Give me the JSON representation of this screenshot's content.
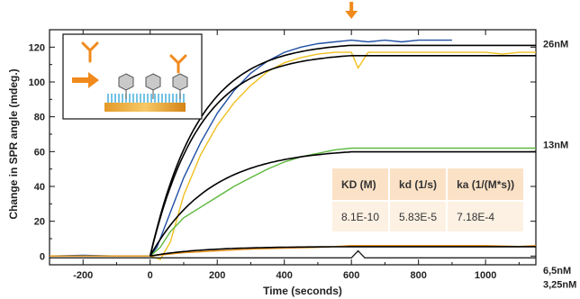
{
  "chart_data": {
    "type": "line",
    "title": "",
    "xlabel": "Time (seconds)",
    "ylabel": "Change in SPR angle (mdeg.)",
    "xlim": [
      -300,
      1150
    ],
    "ylim": [
      -5,
      130
    ],
    "x_ticks": [
      -200,
      0,
      200,
      400,
      600,
      800,
      1000
    ],
    "y_ticks": [
      0,
      20,
      40,
      60,
      80,
      100,
      120
    ],
    "grid": false,
    "injection_marker_time": 600,
    "concentration_labels": [
      {
        "text": "26nM",
        "value": 122
      },
      {
        "text": "13nM",
        "value": 64
      },
      {
        "text": "6,5nM",
        "value": -8
      },
      {
        "text": "3,25nM",
        "value": -16
      }
    ],
    "series": [
      {
        "color": "#1f4fa3",
        "x": [
          -300,
          -200,
          -100,
          0,
          20,
          50,
          100,
          150,
          200,
          250,
          300,
          350,
          400,
          450,
          500,
          550,
          600,
          650,
          700,
          750,
          800,
          850,
          900
        ],
        "y": [
          0,
          0.5,
          0,
          0,
          5,
          20,
          45,
          65,
          82,
          95,
          105,
          112,
          117,
          120,
          122,
          123,
          124,
          123,
          124,
          123,
          124,
          124,
          124
        ]
      },
      {
        "color": "#f0c020",
        "x": [
          -300,
          -200,
          -100,
          0,
          30,
          60,
          100,
          150,
          200,
          250,
          300,
          350,
          400,
          450,
          500,
          550,
          600,
          620,
          650,
          700,
          750,
          800,
          850,
          900,
          950,
          1000,
          1050,
          1100,
          1150
        ],
        "y": [
          0,
          0,
          0,
          0,
          -2,
          8,
          35,
          58,
          75,
          88,
          98,
          106,
          111,
          114,
          116,
          117,
          117,
          108,
          117,
          117,
          117,
          117,
          117,
          117,
          117,
          117,
          116,
          117,
          117
        ]
      },
      {
        "color": "#5cb83c",
        "x": [
          -300,
          -200,
          -100,
          0,
          30,
          60,
          100,
          150,
          200,
          250,
          300,
          350,
          400,
          450,
          500,
          550,
          600,
          700,
          800,
          900,
          1000,
          1100,
          1150
        ],
        "y": [
          0,
          0,
          0,
          0,
          5,
          14,
          22,
          28,
          34,
          40,
          45,
          50,
          54,
          57,
          59,
          61,
          62,
          62,
          62,
          62,
          62,
          62,
          62
        ]
      },
      {
        "color": "#e8901a",
        "x": [
          -300,
          -200,
          -100,
          0,
          100,
          200,
          300,
          400,
          500,
          600,
          700,
          800,
          900,
          1000,
          1100,
          1150
        ],
        "y": [
          0,
          0,
          0,
          0,
          2,
          3,
          4,
          4.5,
          5,
          6,
          6,
          6,
          6,
          6,
          5.5,
          6
        ]
      },
      {
        "color": "#222222",
        "x": [
          -300,
          -200,
          -100,
          0,
          100,
          200,
          300,
          400,
          500,
          600,
          620,
          640,
          700,
          800,
          900,
          1000,
          1100,
          1150
        ],
        "y": [
          -1,
          -1,
          -1,
          -1,
          -1,
          -1,
          -1,
          -1,
          -1,
          -1,
          3,
          -1,
          -1,
          -1,
          -1,
          -1,
          -1,
          -1
        ]
      }
    ],
    "fits": [
      {
        "color": "#000000",
        "ka": 0.0043,
        "plateau": 123,
        "end": 600
      },
      {
        "color": "#000000",
        "ka": 0.0043,
        "plateau": 117,
        "end": 600
      },
      {
        "color": "#000000",
        "ka": 0.0035,
        "plateau": 62,
        "end": 600
      },
      {
        "color": "#000000",
        "ka": 0.004,
        "plateau": 5.5,
        "end": 600
      }
    ]
  },
  "table": {
    "headers": [
      "KD (M)",
      "kd (1/s)",
      "ka (1/(M*s))"
    ],
    "values": [
      "8.1E-10",
      "5.83E-5",
      "7.18E-4"
    ]
  },
  "colors": {
    "accent": "#f08a1c",
    "table_header_bg": "#fbe2c6",
    "table_cell_bg": "#fdf1e3"
  },
  "inset": {
    "icons": [
      "antibody-icon",
      "arrow-icon",
      "antigen-surface-icon"
    ]
  }
}
